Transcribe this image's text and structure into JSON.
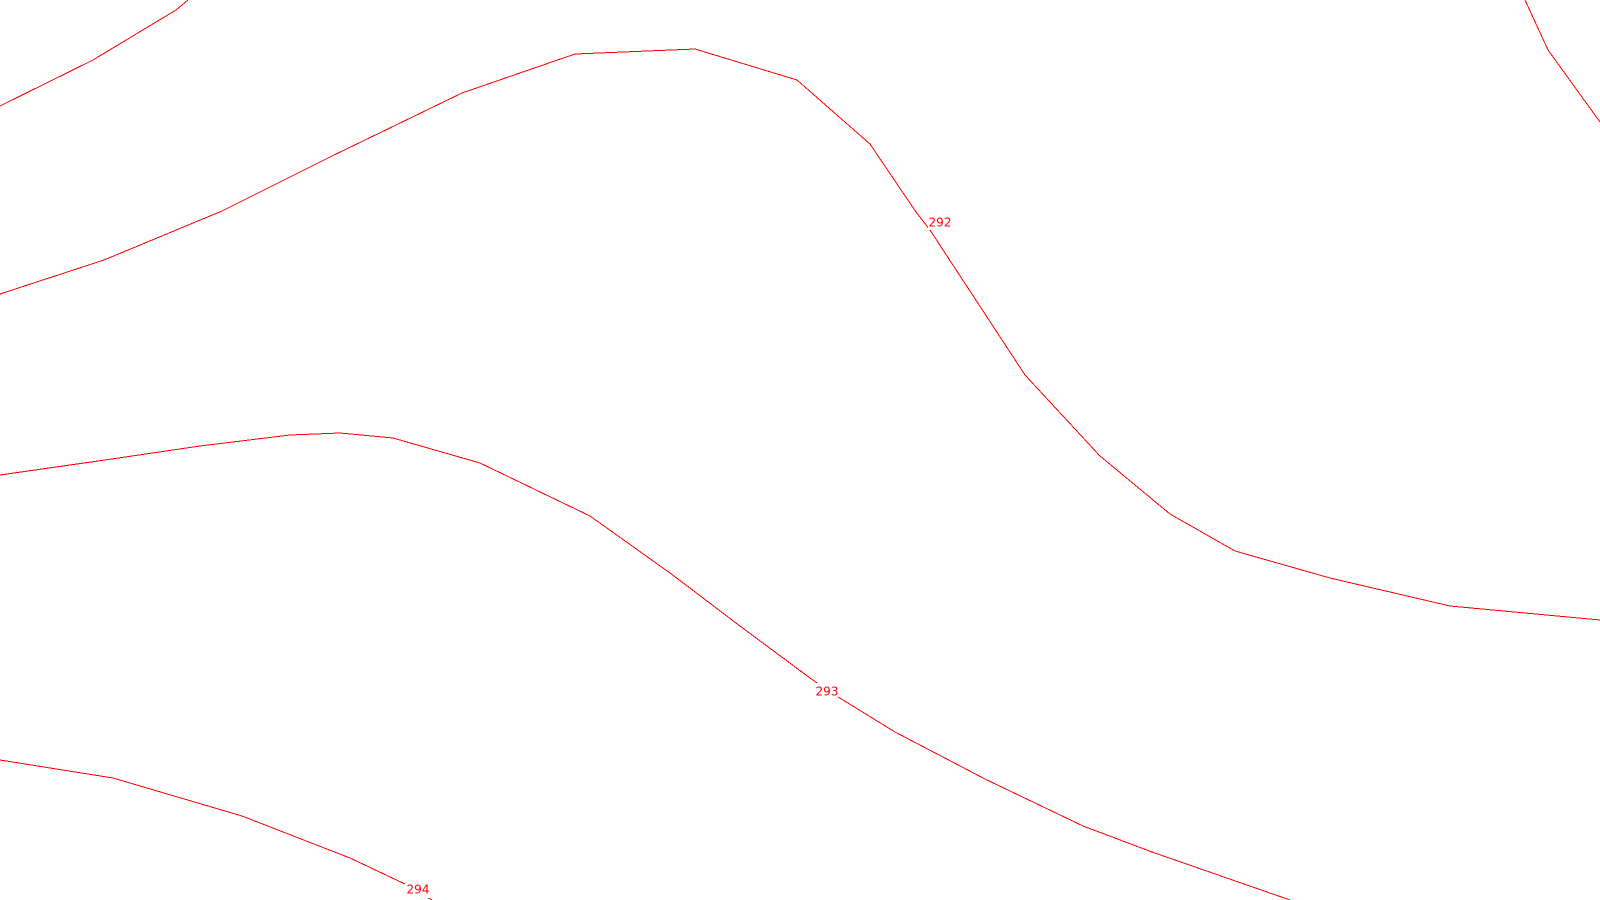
{
  "map": {
    "background_color": "#ffffff",
    "contour_color": "#ff0000",
    "contours": [
      {
        "id": "unlabeled-top-left",
        "elevation": ""
      },
      {
        "id": "elev-292",
        "elevation": "292"
      },
      {
        "id": "elev-293",
        "elevation": "293"
      },
      {
        "id": "elev-294",
        "elevation": "294"
      },
      {
        "id": "unlabeled-top-right",
        "elevation": ""
      }
    ]
  }
}
